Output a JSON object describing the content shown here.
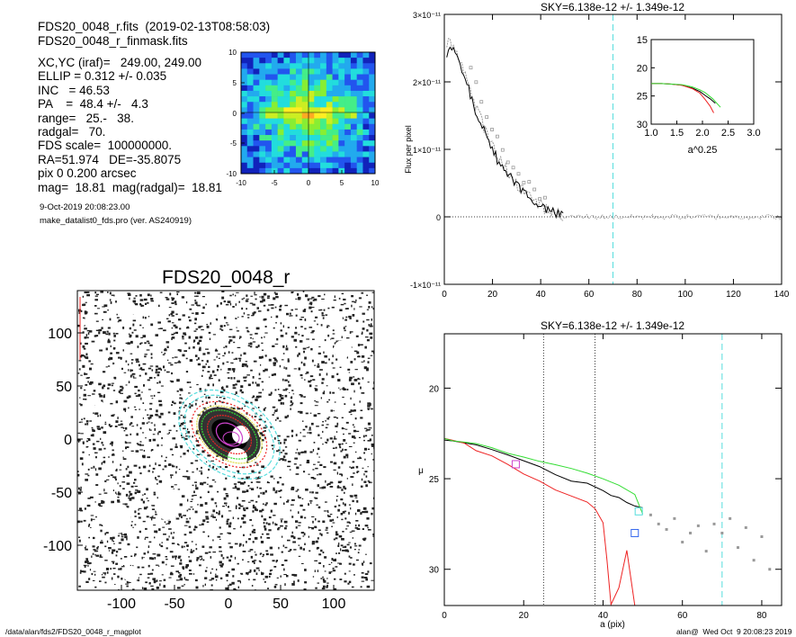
{
  "header": {
    "file1": "FDS20_0048_r.fits  (2019-02-13T08:58:03)",
    "file2": "FDS20_0048_r_finmask.fits"
  },
  "info_lines": [
    "XC,YC (iraf)=   249.00, 249.00",
    "ELLIP = 0.312 +/- 0.035",
    "INC   = 46.53",
    "PA    =  48.4 +/-   4.3",
    "range=   25.-   38.",
    "radgal=   70.",
    "FDS scale=  100000000.",
    "RA=51.974   DE=-35.8075",
    "pix 0 0.200 arcsec",
    "mag=  18.81  mag(radgal)=  18.81"
  ],
  "date_line": "9-Oct-2019 20:08:23.00",
  "program_line": "make_datalist0_fds.pro (ver. AS240919)",
  "image_title": "FDS20_0048_r",
  "footer": {
    "left": "/data/alan/fds2/FDS20_0048_r_magplot",
    "right": "alan@  Wed Oct  9 20:08:23 2019"
  },
  "colors": {
    "profile_black": "#000000",
    "profile_gray": "#999999",
    "red": "#ee2222",
    "green": "#33dd33",
    "cyan": "#55dddd",
    "magenta": "#cc44cc",
    "blue": "#3366ee"
  },
  "chart_data": [
    {
      "name": "residual-map",
      "type": "heatmap",
      "colormap": "rainbow (blue-cyan-green-yellow-red)",
      "xlim": [
        -10,
        10
      ],
      "ylim": [
        -10,
        10
      ],
      "xticks": [
        "-10",
        "-5",
        "0",
        "5",
        "10"
      ],
      "yticks": [
        "10",
        "5",
        "0",
        "-5",
        "-10"
      ]
    },
    {
      "name": "galaxy-image",
      "type": "image",
      "title": "FDS20_0048_r",
      "xlim": [
        -140,
        140
      ],
      "ylim": [
        -140,
        140
      ],
      "xticks": [
        "-100",
        "-50",
        "0",
        "50",
        "100"
      ],
      "yticks": [
        "100",
        "50",
        "0",
        "-50",
        "-100"
      ],
      "isophote_colors": [
        "#cc44cc",
        "#ee2222",
        "#33dd33",
        "#dddd44",
        "#55dddd"
      ]
    },
    {
      "name": "flux-profile",
      "type": "line",
      "title": "SKY=6.138e-12 +/- 1.349e-12",
      "ylabel": "Flux per pixel",
      "xlim": [
        0,
        140
      ],
      "ylim": [
        -1e-11,
        3e-11
      ],
      "xticks": [
        "0",
        "20",
        "40",
        "60",
        "80",
        "100",
        "120",
        "140"
      ],
      "yticks": [
        "3×10⁻¹¹",
        "2×10⁻¹¹",
        "1×10⁻¹¹",
        "0",
        "-1×10⁻¹¹"
      ],
      "vline_x": 70,
      "series": [
        {
          "values_x": [
            0,
            2,
            4,
            6,
            8,
            10,
            12,
            15,
            18,
            20,
            22,
            25,
            28,
            30,
            33,
            35,
            38,
            40,
            43,
            45,
            48,
            50,
            55,
            60,
            70,
            80,
            100,
            120,
            140
          ],
          "values_y": [
            2.3e-11,
            2.5e-11,
            2.45e-11,
            2.3e-11,
            2.1e-11,
            1.9e-11,
            1.65e-11,
            1.4e-11,
            1.15e-11,
            1e-11,
            8.5e-12,
            7e-12,
            5.8e-12,
            4.8e-12,
            3.8e-12,
            3e-12,
            2.2e-12,
            1.5e-12,
            1e-12,
            7e-13,
            3e-13,
            0,
            -1e-13,
            0,
            1e-13,
            -1e-13,
            0,
            1e-13,
            0
          ]
        }
      ]
    },
    {
      "name": "inset-profile",
      "type": "line",
      "xlabel": "a^0.25",
      "xlim": [
        1.0,
        3.0
      ],
      "ylim": [
        30,
        15
      ],
      "xticks": [
        "1.0",
        "1.5",
        "2.0",
        "2.5",
        "3.0"
      ],
      "yticks": [
        "15",
        "20",
        "25",
        "30"
      ],
      "series": [
        {
          "name": "black",
          "x": [
            1.0,
            1.2,
            1.4,
            1.6,
            1.8,
            1.95,
            2.05,
            2.15,
            2.25
          ],
          "y": [
            22.8,
            22.8,
            22.9,
            23.1,
            23.6,
            24.2,
            24.9,
            25.5,
            26.3
          ]
        },
        {
          "name": "red",
          "x": [
            1.0,
            1.2,
            1.4,
            1.6,
            1.8,
            1.95,
            2.05,
            2.15,
            2.22
          ],
          "y": [
            22.8,
            22.8,
            22.9,
            23.1,
            23.7,
            24.5,
            25.6,
            26.8,
            28.0
          ]
        },
        {
          "name": "green",
          "x": [
            1.0,
            1.2,
            1.4,
            1.6,
            1.8,
            1.95,
            2.05,
            2.2,
            2.35
          ],
          "y": [
            22.8,
            22.8,
            22.9,
            23.0,
            23.4,
            23.9,
            24.4,
            25.5,
            27.0
          ]
        }
      ]
    },
    {
      "name": "mu-profile",
      "type": "line",
      "title": "SKY=6.138e-12 +/- 1.349e-12",
      "xlabel": "a (pix)",
      "ylabel": "μ",
      "xlim": [
        0,
        85
      ],
      "ylim": [
        32,
        17
      ],
      "xticks": [
        "0",
        "20",
        "40",
        "60",
        "80"
      ],
      "yticks": [
        "20",
        "25",
        "30"
      ],
      "vlines_dotted": [
        25,
        38
      ],
      "vline_dashed": 70,
      "series": [
        {
          "name": "black",
          "x": [
            0,
            2,
            5,
            8,
            12,
            16,
            20,
            24,
            28,
            32,
            36,
            40,
            42,
            44,
            46,
            48,
            50
          ],
          "y": [
            22.8,
            22.9,
            23.0,
            23.2,
            23.4,
            23.7,
            24.0,
            24.4,
            24.8,
            25.1,
            25.3,
            25.6,
            25.9,
            26.1,
            26.3,
            26.5,
            26.6
          ]
        },
        {
          "name": "red",
          "x": [
            0,
            2,
            5,
            8,
            12,
            16,
            20,
            24,
            28,
            32,
            36,
            38,
            40,
            41,
            42,
            44,
            46,
            48
          ],
          "y": [
            22.8,
            22.9,
            23.1,
            23.4,
            23.8,
            24.2,
            24.7,
            25.1,
            25.6,
            26.0,
            26.3,
            26.7,
            27.5,
            29.5,
            32,
            31,
            29,
            32
          ]
        },
        {
          "name": "green",
          "x": [
            0,
            2,
            5,
            8,
            12,
            16,
            20,
            24,
            28,
            32,
            36,
            40,
            44,
            48,
            50
          ],
          "y": [
            22.8,
            22.9,
            23.0,
            23.1,
            23.3,
            23.6,
            23.8,
            24.1,
            24.3,
            24.5,
            24.7,
            25.0,
            25.3,
            25.8,
            27.0
          ]
        },
        {
          "name": "gray-points",
          "x": [
            52,
            54,
            56,
            58,
            60,
            62,
            64,
            66,
            68,
            70,
            72,
            74,
            76,
            78,
            80,
            82
          ],
          "y": [
            27.0,
            27.5,
            27.8,
            27.2,
            28.5,
            28.0,
            27.6,
            29.0,
            27.5,
            28.0,
            27.2,
            28.8,
            27.7,
            29.5,
            28.2,
            30.0
          ]
        }
      ],
      "markers": [
        {
          "color": "magenta",
          "x": 18,
          "y": 24.2
        },
        {
          "color": "cyan",
          "x": 49,
          "y": 26.8
        },
        {
          "color": "blue",
          "x": 48,
          "y": 28.0
        }
      ]
    }
  ]
}
